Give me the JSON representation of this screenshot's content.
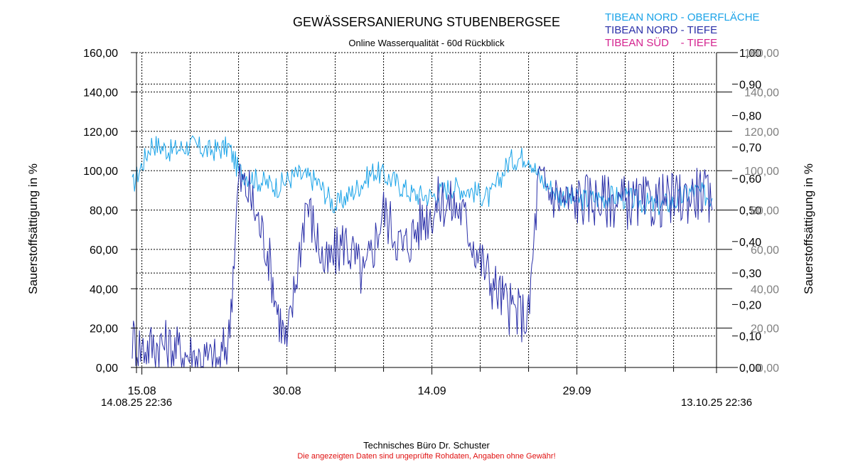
{
  "chart_data": {
    "type": "line",
    "title": "GEWÄSSERSANIERUNG STUBENBERGSEE",
    "subtitle": "Online Wasserqualität - 60d Rückblick",
    "ylabel_left": "Sauerstoffsättigung in %",
    "ylabel_right": "Sauerstoffsättigung in %",
    "ylim": [
      0,
      160
    ],
    "y_ticks_left": [
      "0,00",
      "20,00",
      "40,00",
      "60,00",
      "80,00",
      "100,00",
      "120,00",
      "140,00",
      "160,00"
    ],
    "y_ticks_right_inner": [
      "0,00",
      "0,10",
      "0,20",
      "0,30",
      "0,40",
      "0,50",
      "0,60",
      "0,70",
      "0,80",
      "0,90",
      "1,00"
    ],
    "y_ticks_right_outer": [
      "0,00",
      "20,00",
      "40,00",
      "60,00",
      "80,00",
      "100,00",
      "120,00",
      "140,00",
      "160,00"
    ],
    "x_range": [
      "2025-08-14 22:36",
      "2025-10-13 22:36"
    ],
    "x_ticks": [
      {
        "date": "2025-08-15",
        "label": "15.08"
      },
      {
        "date": "2025-08-30",
        "label": "30.08"
      },
      {
        "date": "2025-09-14",
        "label": "14.09"
      },
      {
        "date": "2025-09-29",
        "label": "29.09"
      }
    ],
    "x_minor_dates": [
      "2025-08-20",
      "2025-08-25",
      "2025-09-04",
      "2025-09-09",
      "2025-09-19",
      "2025-09-24",
      "2025-10-04",
      "2025-10-09"
    ],
    "x_start_label": "14.08.25 22:36",
    "x_end_label": "13.10.25 22:36",
    "grid": true,
    "legend_position": "top-right",
    "series": [
      {
        "name": "TIBEAN NORD - OBERFLÄCHE",
        "color": "#1aa3e8",
        "x": [
          "2025-08-14",
          "2025-08-16",
          "2025-08-18",
          "2025-08-20",
          "2025-08-22",
          "2025-08-24",
          "2025-08-25",
          "2025-08-27",
          "2025-08-29",
          "2025-08-31",
          "2025-09-02",
          "2025-09-04",
          "2025-09-06",
          "2025-09-08",
          "2025-09-10",
          "2025-09-12",
          "2025-09-14",
          "2025-09-16",
          "2025-09-18",
          "2025-09-20",
          "2025-09-22",
          "2025-09-24",
          "2025-09-25",
          "2025-09-27",
          "2025-09-29",
          "2025-10-01",
          "2025-10-03",
          "2025-10-05",
          "2025-10-07",
          "2025-10-09",
          "2025-10-11",
          "2025-10-13"
        ],
        "values": [
          92,
          114,
          110,
          113,
          110,
          112,
          100,
          95,
          92,
          98,
          95,
          82,
          90,
          100,
          95,
          88,
          87,
          92,
          90,
          86,
          105,
          108,
          97,
          88,
          85,
          86,
          87,
          85,
          82,
          84,
          90,
          86
        ]
      },
      {
        "name": "TIBEAN NORD - TIEFE",
        "color": "#2a2fa8",
        "x": [
          "2025-08-14",
          "2025-08-15",
          "2025-08-17",
          "2025-08-19",
          "2025-08-21",
          "2025-08-23",
          "2025-08-24",
          "2025-08-25",
          "2025-08-26",
          "2025-08-28",
          "2025-08-29",
          "2025-08-30",
          "2025-09-01",
          "2025-09-03",
          "2025-09-05",
          "2025-09-07",
          "2025-09-09",
          "2025-09-11",
          "2025-09-13",
          "2025-09-15",
          "2025-09-17",
          "2025-09-19",
          "2025-09-20",
          "2025-09-22",
          "2025-09-24",
          "2025-09-25",
          "2025-09-26",
          "2025-09-28",
          "2025-09-30",
          "2025-10-02",
          "2025-10-04",
          "2025-10-06",
          "2025-10-08",
          "2025-10-10",
          "2025-10-12",
          "2025-10-13"
        ],
        "values": [
          15,
          10,
          12,
          8,
          5,
          2,
          15,
          95,
          90,
          60,
          30,
          10,
          85,
          50,
          65,
          45,
          80,
          60,
          75,
          85,
          80,
          55,
          45,
          30,
          25,
          95,
          90,
          84,
          86,
          85,
          84,
          83,
          85,
          86,
          90,
          80
        ]
      },
      {
        "name": "TIBEAN SÜD    - TIEFE",
        "color": "#d4238f",
        "x": [],
        "values": []
      }
    ]
  },
  "footer": {
    "company": "Technisches Büro Dr. Schuster",
    "disclaimer": "Die angezeigten Daten sind ungeprüfte Rohdaten, Angaben ohne Gewähr!"
  }
}
